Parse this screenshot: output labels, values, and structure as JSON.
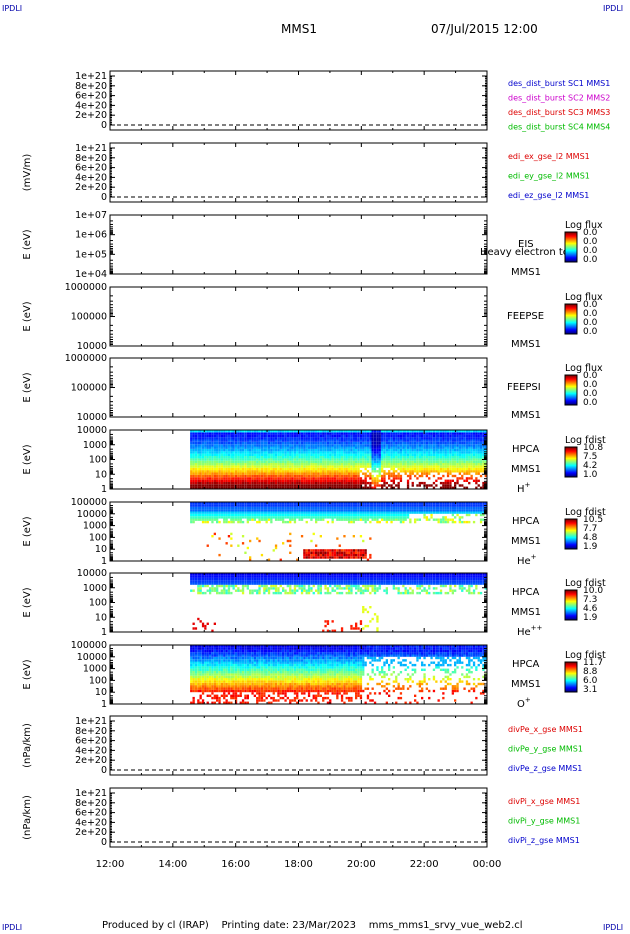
{
  "header": {
    "corner_label": "IPDLI",
    "mission": "MMS1",
    "date": "07/Jul/2015 12:00"
  },
  "footer": {
    "produced_by": "Produced by cl (IRAP)",
    "printing_date": "Printing date: 23/Mar/2023",
    "file_name": "mms_mms1_srvy_vue_web2.cl"
  },
  "chart_data": {
    "type": "heatmap",
    "x_axis": {
      "ticks": [
        "12:00",
        "14:00",
        "16:00",
        "18:00",
        "20:00",
        "22:00",
        "00:00"
      ],
      "range_hours": [
        12,
        24
      ],
      "data_start_hour": 14.55
    },
    "panels": [
      {
        "id": "des-dist",
        "kind": "line",
        "ylabel": "",
        "yticks": [
          "1e+21",
          "8e+20",
          "6e+20",
          "4e+20",
          "2e+20",
          "0"
        ],
        "legend": [
          {
            "text": "des_dist_burst SC1 MMS1",
            "color": "#0000cc"
          },
          {
            "text": "des_dist_burst SC2 MMS2",
            "color": "#cc00cc"
          },
          {
            "text": "des_dist_burst SC3 MMS3",
            "color": "#dd0000"
          },
          {
            "text": "des_dist_burst SC4 MMS4",
            "color": "#00bb00"
          }
        ]
      },
      {
        "id": "edi",
        "kind": "line",
        "ylabel": "(mV/m)",
        "yticks": [
          "1e+21",
          "8e+20",
          "6e+20",
          "4e+20",
          "2e+20",
          "0"
        ],
        "legend": [
          {
            "text": "edi_ex_gse_l2 MMS1",
            "color": "#dd0000"
          },
          {
            "text": "edi_ey_gse_l2 MMS1",
            "color": "#00bb00"
          },
          {
            "text": "edi_ez_gse_l2 MMS1",
            "color": "#0000cc"
          }
        ]
      },
      {
        "id": "eis",
        "kind": "spectro",
        "ylabel": "E (eV)",
        "yticks": [
          "1e+07",
          "1e+06",
          "1e+05",
          "1e+04"
        ],
        "right_labels": [
          "EIS",
          "Heavy electron to",
          "MMS1"
        ],
        "colorbar": {
          "title": "Log flux",
          "ticks": [
            "0.0",
            "0.0",
            "0.0",
            "0.0"
          ]
        }
      },
      {
        "id": "feepse",
        "kind": "spectro",
        "ylabel": "E (eV)",
        "yticks": [
          "1000000",
          "100000",
          "10000"
        ],
        "right_labels": [
          "FEEPSE",
          "MMS1"
        ],
        "colorbar": {
          "title": "Log flux",
          "ticks": [
            "0.0",
            "0.0",
            "0.0",
            "0.0"
          ]
        }
      },
      {
        "id": "feepsi",
        "kind": "spectro",
        "ylabel": "E (eV)",
        "yticks": [
          "1000000",
          "100000",
          "10000"
        ],
        "right_labels": [
          "FEEPSI",
          "MMS1"
        ],
        "colorbar": {
          "title": "Log flux",
          "ticks": [
            "0.0",
            "0.0",
            "0.0",
            "0.0"
          ]
        }
      },
      {
        "id": "hpca-h",
        "kind": "spectro",
        "ylabel": "E (eV)",
        "yticks": [
          "10000",
          "1000",
          "100",
          "10",
          "1"
        ],
        "right_labels": [
          "HPCA",
          "MMS1"
        ],
        "species": {
          "base": "H",
          "sup": "+"
        },
        "colorbar": {
          "title": "Log fdist",
          "ticks": [
            "10.8",
            "7.5",
            "4.2",
            "1.0"
          ]
        },
        "pattern": "h"
      },
      {
        "id": "hpca-he",
        "kind": "spectro",
        "ylabel": "E (eV)",
        "yticks": [
          "100000",
          "10000",
          "1000",
          "100",
          "10",
          "1"
        ],
        "right_labels": [
          "HPCA",
          "MMS1"
        ],
        "species": {
          "base": "He",
          "sup": "+"
        },
        "colorbar": {
          "title": "Log fdist",
          "ticks": [
            "10.5",
            "7.7",
            "4.8",
            "1.9"
          ]
        },
        "pattern": "he"
      },
      {
        "id": "hpca-hepp",
        "kind": "spectro",
        "ylabel": "E (eV)",
        "yticks": [
          "10000",
          "1000",
          "100",
          "10",
          "1"
        ],
        "right_labels": [
          "HPCA",
          "MMS1"
        ],
        "species": {
          "base": "He",
          "sup": "++"
        },
        "colorbar": {
          "title": "Log fdist",
          "ticks": [
            "10.0",
            "7.3",
            "4.6",
            "1.9"
          ]
        },
        "pattern": "hepp"
      },
      {
        "id": "hpca-o",
        "kind": "spectro",
        "ylabel": "E (eV)",
        "yticks": [
          "100000",
          "10000",
          "1000",
          "100",
          "10",
          "1"
        ],
        "right_labels": [
          "HPCA",
          "MMS1"
        ],
        "species": {
          "base": "O",
          "sup": "+"
        },
        "colorbar": {
          "title": "Log fdist",
          "ticks": [
            "11.7",
            "8.8",
            "6.0",
            "3.1"
          ]
        },
        "pattern": "o"
      },
      {
        "id": "divpe",
        "kind": "line",
        "ylabel": "(nPa/km)",
        "yticks": [
          "1e+21",
          "8e+20",
          "6e+20",
          "4e+20",
          "2e+20",
          "0"
        ],
        "legend": [
          {
            "text": "divPe_x_gse MMS1",
            "color": "#dd0000"
          },
          {
            "text": "divPe_y_gse MMS1",
            "color": "#00bb00"
          },
          {
            "text": "divPe_z_gse MMS1",
            "color": "#0000cc"
          }
        ]
      },
      {
        "id": "divpi",
        "kind": "line",
        "ylabel": "(nPa/km)",
        "yticks": [
          "1e+21",
          "8e+20",
          "6e+20",
          "4e+20",
          "2e+20",
          "0"
        ],
        "legend": [
          {
            "text": "divPi_x_gse MMS1",
            "color": "#dd0000"
          },
          {
            "text": "divPi_y_gse MMS1",
            "color": "#00bb00"
          },
          {
            "text": "divPi_z_gse MMS1",
            "color": "#0000cc"
          }
        ]
      }
    ]
  }
}
